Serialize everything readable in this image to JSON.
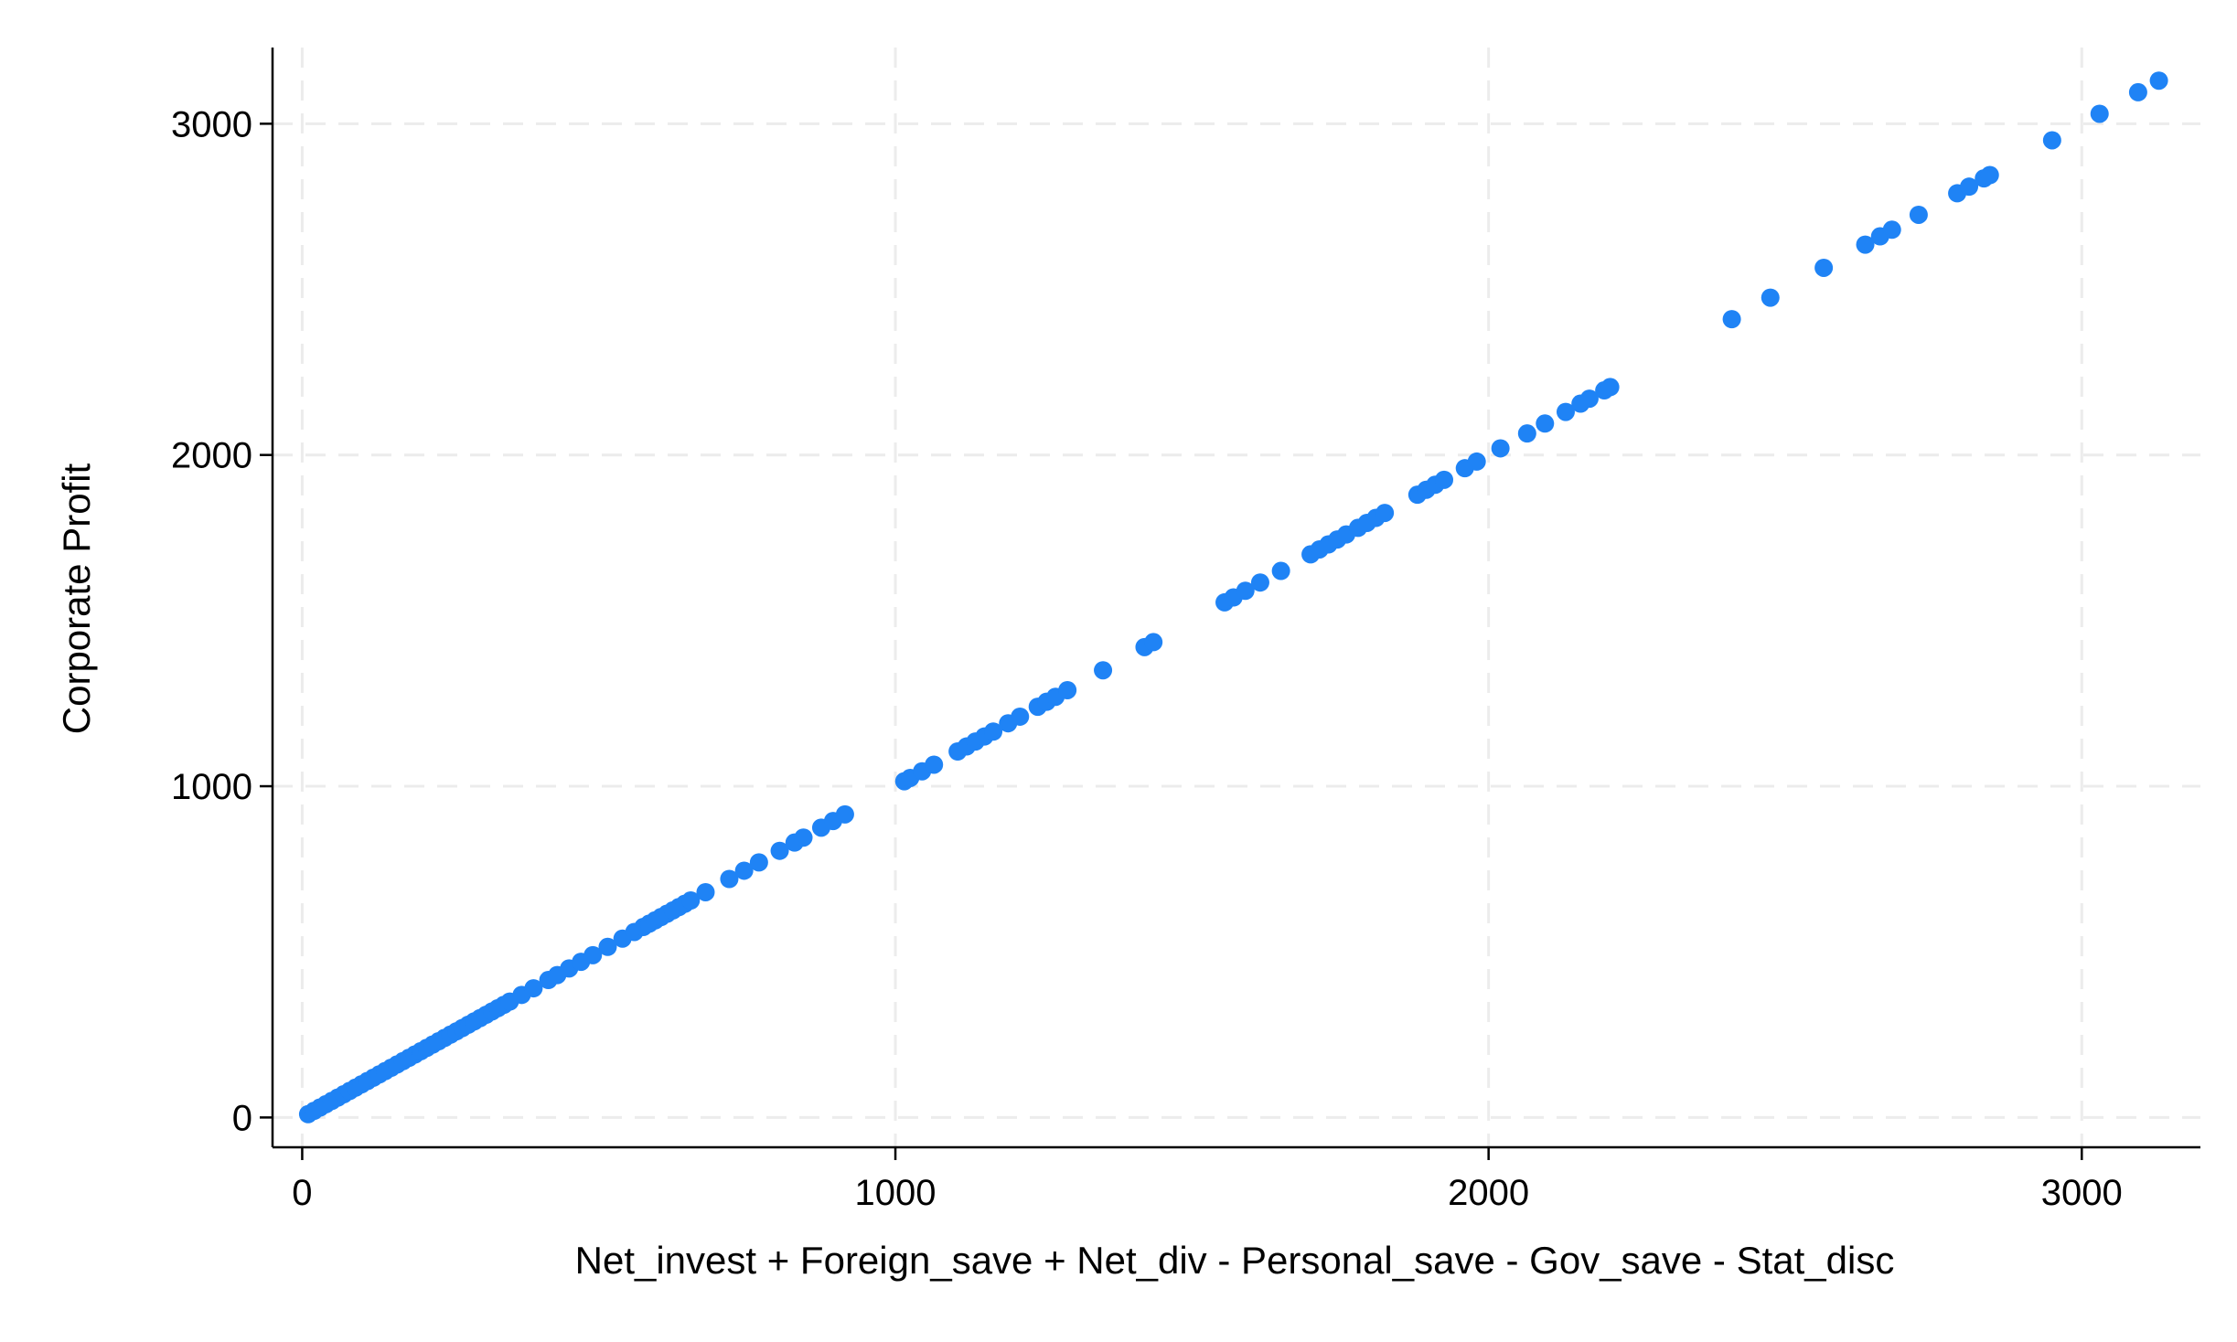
{
  "chart_data": {
    "type": "scatter",
    "title": "",
    "xlabel": "Net_invest + Foreign_save + Net_div - Personal_save - Gov_save - Stat_disc",
    "ylabel": "Corporate Profit",
    "xlim": [
      -50,
      3200
    ],
    "ylim": [
      -90,
      3230
    ],
    "xticks": [
      "0",
      "1000",
      "2000",
      "3000"
    ],
    "yticks": [
      "0",
      "1000",
      "2000",
      "3000"
    ],
    "grid": true,
    "marker_color": "#1f83f5",
    "series": [
      {
        "x": [
          10,
          20,
          30,
          40,
          50,
          60,
          70,
          80,
          90,
          100,
          110,
          120,
          130,
          140,
          150,
          160,
          170,
          180,
          190,
          200,
          210,
          220,
          230,
          240,
          250,
          260,
          270,
          280,
          290,
          300,
          310,
          320,
          330,
          340,
          350,
          370,
          390,
          415,
          430,
          450,
          470,
          490,
          515,
          540,
          560,
          575,
          585,
          595,
          605,
          615,
          625,
          635,
          645,
          655,
          680,
          720,
          745,
          770,
          805,
          830,
          845,
          875,
          895,
          915,
          1015,
          1025,
          1045,
          1065,
          1105,
          1120,
          1135,
          1150,
          1165,
          1190,
          1210,
          1240,
          1255,
          1270,
          1290,
          1350,
          1420,
          1435,
          1555,
          1570,
          1590,
          1615,
          1650,
          1700,
          1715,
          1730,
          1745,
          1760,
          1780,
          1795,
          1810,
          1825,
          1880,
          1895,
          1910,
          1925,
          1960,
          1980,
          2020,
          2065,
          2095,
          2130,
          2155,
          2170,
          2195,
          2205,
          2410,
          2475,
          2565,
          2635,
          2660,
          2680,
          2725,
          2790,
          2810,
          2835,
          2845,
          2950,
          3030,
          3095,
          3130
        ],
        "y": [
          10,
          20,
          30,
          40,
          50,
          60,
          70,
          80,
          90,
          100,
          110,
          120,
          130,
          140,
          150,
          160,
          170,
          180,
          190,
          200,
          210,
          220,
          230,
          240,
          250,
          260,
          270,
          280,
          290,
          300,
          310,
          320,
          330,
          340,
          350,
          370,
          390,
          415,
          430,
          450,
          470,
          490,
          515,
          540,
          560,
          575,
          585,
          595,
          605,
          615,
          625,
          635,
          645,
          655,
          680,
          720,
          745,
          770,
          805,
          830,
          845,
          875,
          895,
          915,
          1015,
          1025,
          1045,
          1065,
          1105,
          1120,
          1135,
          1150,
          1165,
          1190,
          1210,
          1240,
          1255,
          1270,
          1290,
          1350,
          1420,
          1435,
          1555,
          1570,
          1590,
          1615,
          1650,
          1700,
          1715,
          1730,
          1745,
          1760,
          1780,
          1795,
          1810,
          1825,
          1880,
          1895,
          1910,
          1925,
          1960,
          1980,
          2020,
          2065,
          2095,
          2130,
          2155,
          2170,
          2195,
          2205,
          2410,
          2475,
          2565,
          2635,
          2660,
          2680,
          2725,
          2790,
          2810,
          2835,
          2845,
          2950,
          3030,
          3095,
          3130
        ]
      }
    ]
  }
}
